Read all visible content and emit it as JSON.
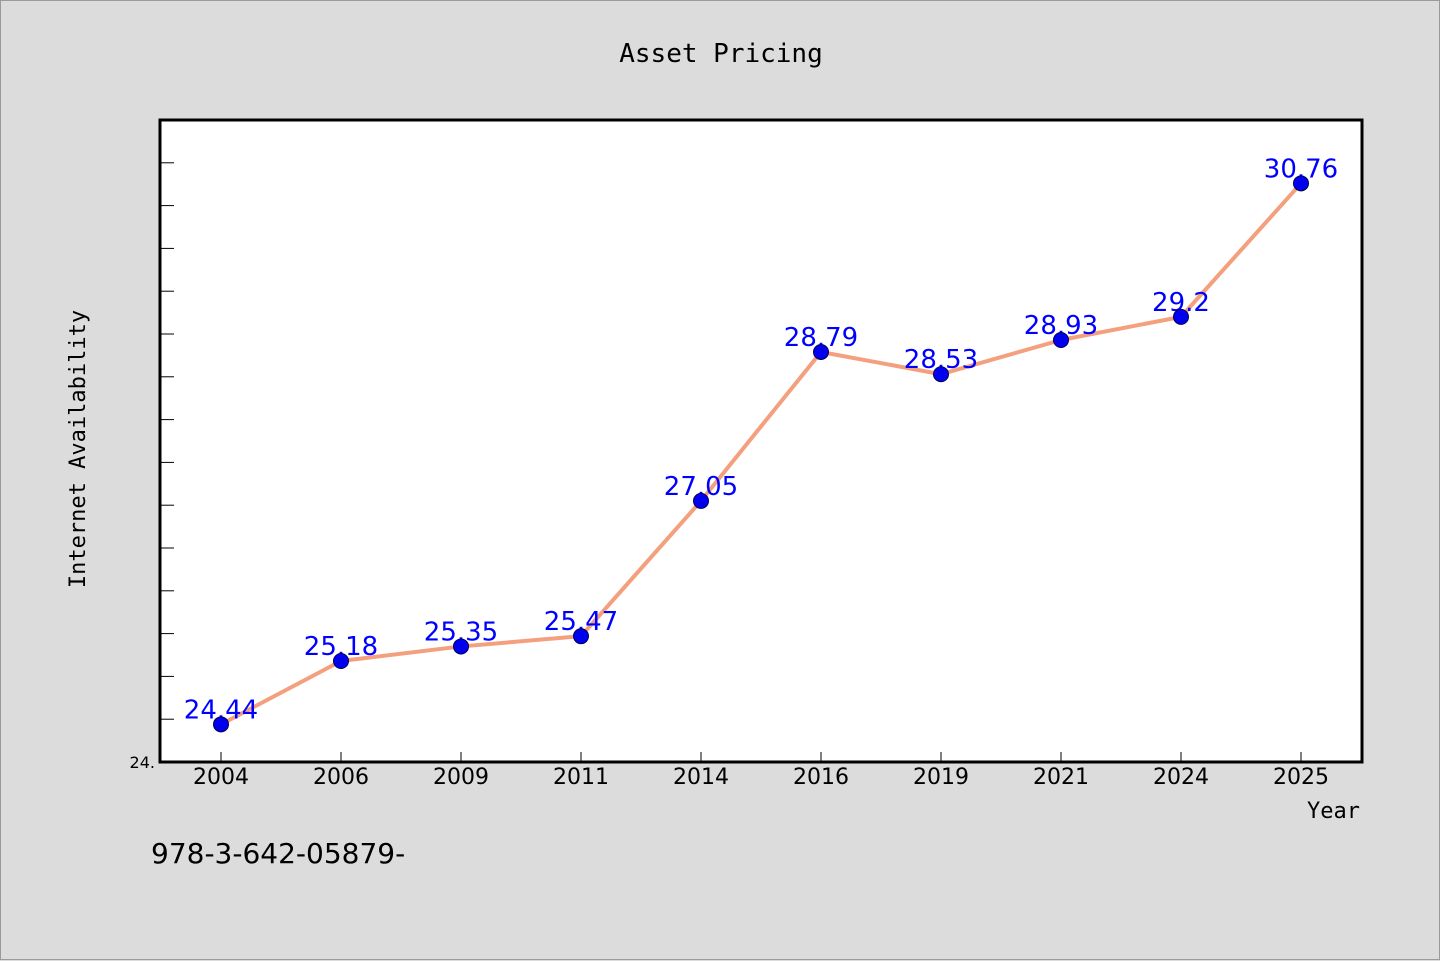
{
  "chart_data": {
    "type": "line",
    "title": "Asset Pricing",
    "xlabel": "Year",
    "ylabel": "Internet Availability",
    "categories": [
      "2004",
      "2006",
      "2009",
      "2011",
      "2014",
      "2016",
      "2019",
      "2021",
      "2024",
      "2025"
    ],
    "series": [
      {
        "values": [
          24.44,
          25.18,
          25.35,
          25.47,
          27.05,
          28.79,
          28.53,
          28.93,
          29.2,
          30.76
        ],
        "labels": [
          "24.44",
          "25.18",
          "25.35",
          "25.47",
          "27.05",
          "28.79",
          "28.53",
          "28.93",
          "29.2",
          "30.76"
        ],
        "line_color": "#f4a07e",
        "marker_color": "#0000ee",
        "label_color": "#0000ff"
      }
    ],
    "ylim": [
      24.0,
      31.5
    ],
    "y_tick_label_visible": "24.",
    "grid": false,
    "legend": "none"
  },
  "footer": {
    "text": "978-3-642-05879-"
  },
  "colors": {
    "background": "#dcdcdc",
    "plot_background": "#ffffff",
    "axis": "#000000"
  }
}
